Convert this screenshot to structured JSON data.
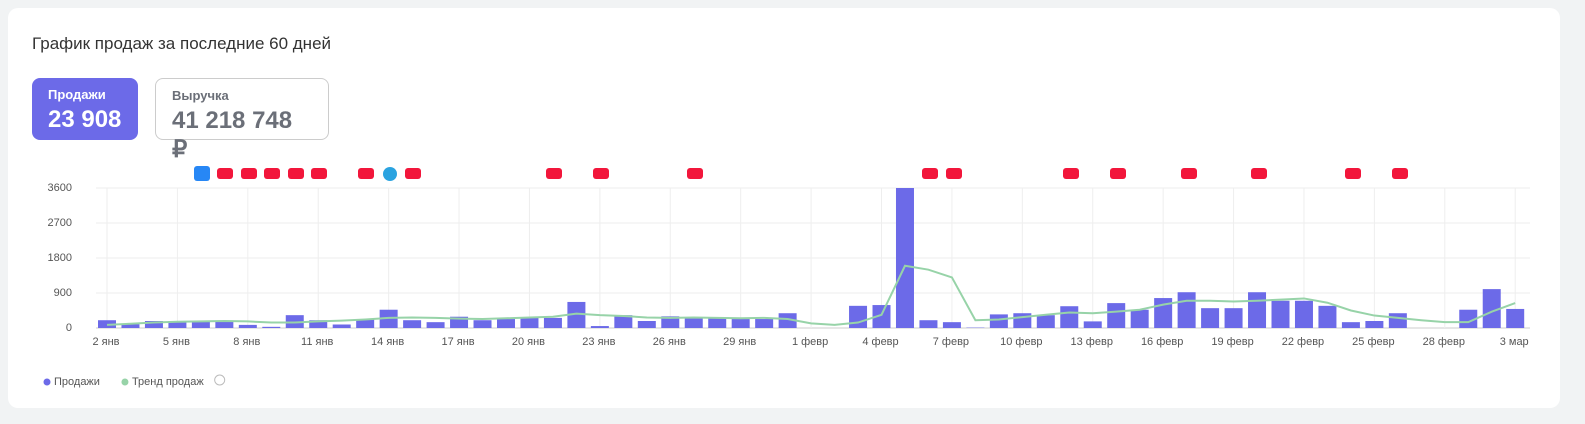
{
  "header": {
    "title": "График продаж за последние 60 дней"
  },
  "cards": [
    {
      "label": "Продажи",
      "value": "23 908"
    },
    {
      "label": "Выручка",
      "value": "41 218 748 ₽"
    }
  ],
  "chart_data": {
    "type": "bar",
    "categories": [
      "2 янв",
      null,
      null,
      "5 янв",
      null,
      null,
      "8 янв",
      null,
      null,
      "11 янв",
      null,
      null,
      "14 янв",
      null,
      null,
      "17 янв",
      null,
      null,
      "20 янв",
      null,
      null,
      "23 янв",
      null,
      null,
      "26 янв",
      null,
      null,
      "29 янв",
      null,
      null,
      "1 февр",
      null,
      null,
      "4 февр",
      null,
      null,
      "7 февр",
      null,
      null,
      "10 февр",
      null,
      null,
      "13 февр",
      null,
      null,
      "16 февр",
      null,
      null,
      "19 февр",
      null,
      null,
      "22 февр",
      null,
      null,
      "25 февр",
      null,
      null,
      "28 февр",
      null,
      null,
      "3 мар"
    ],
    "series": [
      {
        "name": "Продажи",
        "color": "#6c6ae8",
        "values": [
          200,
          100,
          180,
          180,
          180,
          180,
          80,
          30,
          330,
          200,
          90,
          230,
          470,
          200,
          150,
          290,
          200,
          230,
          280,
          260,
          670,
          50,
          330,
          180,
          300,
          260,
          260,
          230,
          230,
          380,
          0,
          0,
          570,
          590,
          3600,
          200,
          150,
          10,
          350,
          380,
          330,
          560,
          170,
          640,
          470,
          770,
          920,
          510,
          510,
          920,
          700,
          700,
          570,
          150,
          180,
          380,
          0,
          0,
          470,
          1000,
          490
        ]
      },
      {
        "name": "Тренд продаж",
        "color": "#97d3a8",
        "values": [
          80,
          110,
          140,
          160,
          170,
          180,
          170,
          140,
          140,
          170,
          190,
          220,
          260,
          270,
          260,
          240,
          230,
          250,
          270,
          290,
          370,
          330,
          310,
          270,
          260,
          270,
          260,
          250,
          260,
          230,
          120,
          80,
          140,
          340,
          1600,
          1500,
          1300,
          200,
          220,
          280,
          340,
          400,
          380,
          420,
          470,
          600,
          700,
          700,
          680,
          700,
          730,
          760,
          650,
          450,
          320,
          260,
          200,
          150,
          150,
          420,
          640
        ]
      }
    ],
    "ylim": [
      0,
      3600
    ],
    "yticks": [
      0,
      900,
      1800,
      2700,
      3600
    ],
    "grid": true,
    "legend": "bottom-left"
  }
}
